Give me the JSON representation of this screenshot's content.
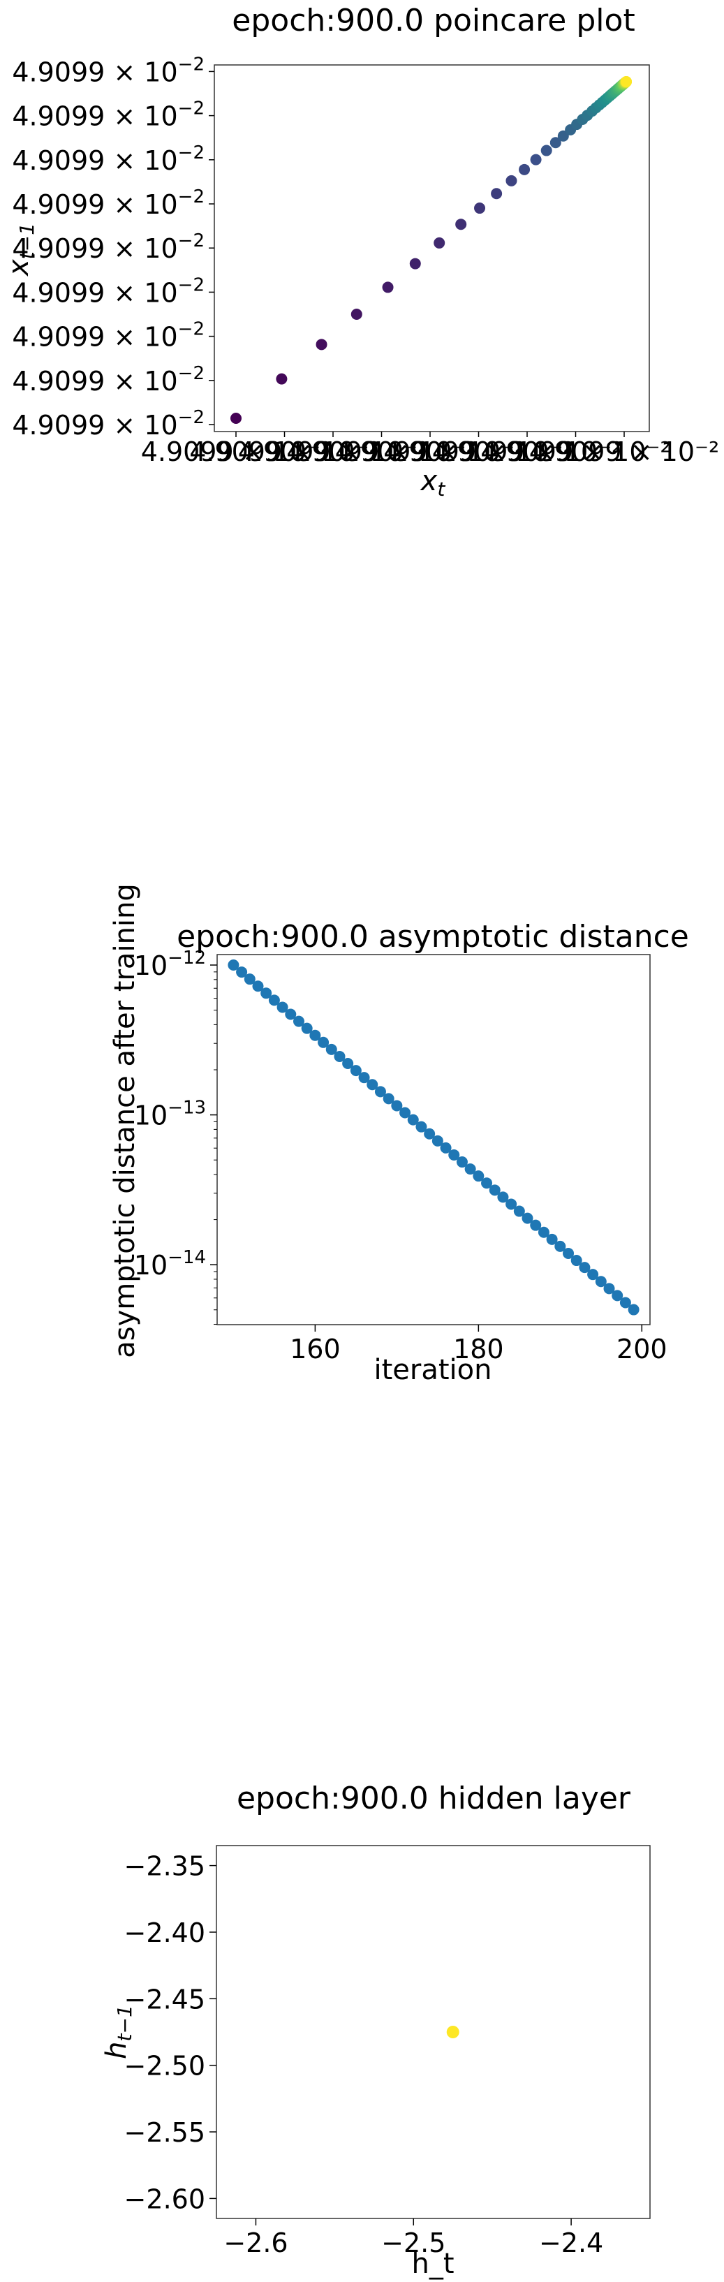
{
  "chart_data": [
    {
      "type": "scatter",
      "title": "epoch:900.0 poincare plot",
      "xlabel_base": "x",
      "xlabel_sub": "t",
      "ylabel_base": "x",
      "ylabel_sub": "t−1",
      "y_tick_labels": [
        "4.9099 × 10",
        "4.9099 × 10",
        "4.9099 × 10",
        "4.9099 × 10",
        "4.9099 × 10",
        "4.9099 × 10",
        "4.9099 × 10",
        "4.9099 × 10",
        "4.9099 × 10"
      ],
      "y_tick_exp": "−2",
      "x_tick_labels": [
        "4.9099 × 10⁻²",
        "4.9099 × 10⁻²",
        "4.9099 × 10⁻²",
        "4.9099 × 10⁻²",
        "4.9099 × 10⁻²",
        "4.9099 × 10⁻²",
        "4.9099 × 10⁻²",
        "4.9099 × 10⁻²",
        "4.9099 × 10⁻²"
      ],
      "note_values": "points lie on the diagonal; later iterations (yellow) converge to the fixed point",
      "t": [
        0.0,
        0.095,
        0.178,
        0.251,
        0.316,
        0.373,
        0.423,
        0.468,
        0.507,
        0.542,
        0.573,
        0.6,
        0.624,
        0.646,
        0.665,
        0.681,
        0.696,
        0.709,
        0.721,
        0.731,
        0.741,
        0.749,
        0.756,
        0.762,
        0.768,
        0.773,
        0.778,
        0.782,
        0.785,
        0.788,
        0.791,
        0.794,
        0.796,
        0.798,
        0.8,
        0.801,
        0.803,
        0.804,
        0.805,
        0.806,
        0.807,
        0.808,
        0.809,
        0.81,
        0.81,
        0.811,
        0.811,
        0.812,
        0.812,
        0.812
      ],
      "colormap": "viridis"
    },
    {
      "type": "scatter",
      "title": "epoch:900.0 asymptotic distance",
      "xlabel": "iteration",
      "ylabel": "asymptotic distance after training",
      "yscale": "log",
      "xlim": [
        148,
        201
      ],
      "ylim_log10": [
        -14.4,
        -11.93
      ],
      "x_ticks": [
        160,
        180,
        200
      ],
      "y_ticks": [
        {
          "base": "10",
          "exp": "−12",
          "log": -12
        },
        {
          "base": "10",
          "exp": "−13",
          "log": -13
        },
        {
          "base": "10",
          "exp": "−14",
          "log": -14
        }
      ],
      "x_start": 150,
      "x_end": 199,
      "y_log_start": -12.0,
      "y_log_end": -14.3,
      "color": "#1f77b4"
    },
    {
      "type": "scatter",
      "title": "epoch:900.0 hidden layer",
      "xlabel": "h_t",
      "ylabel_base": "h",
      "ylabel_sub": "t−1",
      "xlim": [
        -2.625,
        -2.35
      ],
      "ylim": [
        -2.615,
        -2.335
      ],
      "x_ticks": [
        {
          "v": -2.6,
          "label": "−2.6"
        },
        {
          "v": -2.5,
          "label": "−2.5"
        },
        {
          "v": -2.4,
          "label": "−2.4"
        }
      ],
      "y_ticks": [
        {
          "v": -2.35,
          "label": "−2.35"
        },
        {
          "v": -2.4,
          "label": "−2.40"
        },
        {
          "v": -2.45,
          "label": "−2.45"
        },
        {
          "v": -2.5,
          "label": "−2.50"
        },
        {
          "v": -2.55,
          "label": "−2.55"
        },
        {
          "v": -2.6,
          "label": "−2.60"
        }
      ],
      "points": [
        {
          "x": -2.475,
          "y": -2.475
        }
      ],
      "color": "#fde725"
    }
  ]
}
